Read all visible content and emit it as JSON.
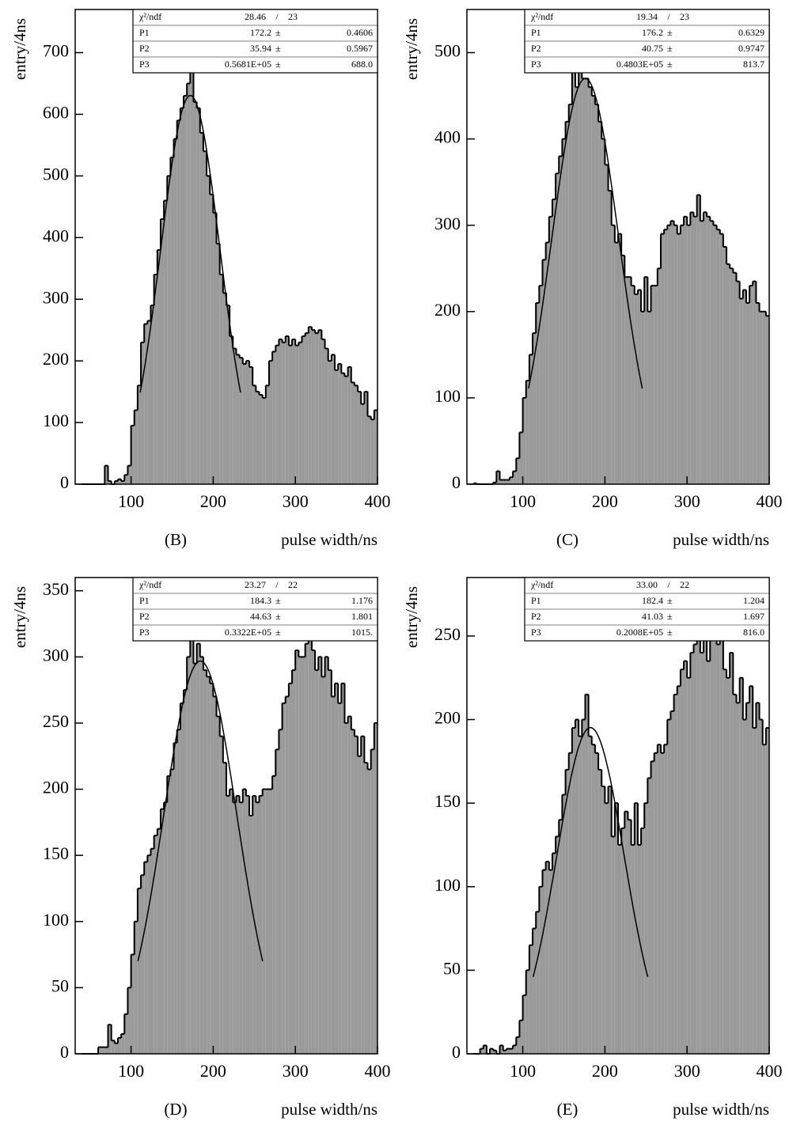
{
  "chart_data": [
    {
      "type": "histogram",
      "panel_label": "(B)",
      "x_label": "pulse width/ns",
      "y_label": "entry/4ns",
      "color": "#9a9a9a",
      "xlim": [
        32,
        400
      ],
      "ylim": [
        0,
        770
      ],
      "xticks": [
        100,
        200,
        300,
        400
      ],
      "yticks": [
        0,
        100,
        200,
        300,
        400,
        500,
        600,
        700
      ],
      "bins": [
        40,
        44,
        48,
        52,
        56,
        60,
        64,
        68,
        72,
        76,
        80,
        84,
        88,
        92,
        96,
        100,
        104,
        108,
        112,
        116,
        120,
        124,
        128,
        132,
        136,
        140,
        144,
        148,
        152,
        156,
        160,
        164,
        168,
        172,
        176,
        180,
        184,
        188,
        192,
        196,
        200,
        204,
        208,
        212,
        216,
        220,
        224,
        228,
        232,
        236,
        240,
        244,
        248,
        252,
        256,
        260,
        264,
        268,
        272,
        276,
        280,
        284,
        288,
        292,
        296,
        300,
        304,
        308,
        312,
        316,
        320,
        324,
        328,
        332,
        336,
        340,
        344,
        348,
        352,
        356,
        360,
        364,
        368,
        372,
        376,
        380,
        384,
        388,
        392,
        396,
        400
      ],
      "counts": [
        0,
        0,
        0,
        0,
        0,
        0,
        0,
        30,
        5,
        0,
        5,
        8,
        5,
        15,
        30,
        95,
        120,
        160,
        230,
        260,
        265,
        290,
        340,
        380,
        430,
        460,
        500,
        530,
        560,
        590,
        610,
        630,
        650,
        690,
        620,
        610,
        570,
        540,
        500,
        470,
        440,
        390,
        340,
        310,
        290,
        240,
        220,
        210,
        205,
        195,
        200,
        190,
        160,
        150,
        145,
        140,
        160,
        200,
        215,
        225,
        235,
        230,
        240,
        225,
        235,
        225,
        230,
        240,
        245,
        255,
        250,
        245,
        250,
        235,
        220,
        200,
        210,
        185,
        195,
        180,
        175,
        190,
        165,
        160,
        150,
        130,
        150,
        110,
        105,
        120
      ],
      "fit": {
        "chi2_label": "χ²/ndf",
        "chi2": 28.46,
        "sep": "/",
        "ndf": 23,
        "params": [
          {
            "name": "P1",
            "value": 172.2,
            "pm": "±",
            "error": 0.4606
          },
          {
            "name": "P2",
            "value": 35.94,
            "pm": "±",
            "error": 0.5967
          },
          {
            "name": "P3",
            "value": {
              "value": 56810,
              "label": "0.5681E+05"
            },
            "pm": "±",
            "error": {
              "value": 688,
              "label": "688.0"
            }
          }
        ]
      }
    },
    {
      "type": "histogram",
      "panel_label": "(C)",
      "x_label": "pulse width/ns",
      "y_label": "entry/4ns",
      "color": "#9a9a9a",
      "xlim": [
        32,
        400
      ],
      "ylim": [
        0,
        550
      ],
      "xticks": [
        100,
        200,
        300,
        400
      ],
      "yticks": [
        0,
        100,
        200,
        300,
        400,
        500
      ],
      "bins": [
        40,
        44,
        48,
        52,
        56,
        60,
        64,
        68,
        72,
        76,
        80,
        84,
        88,
        92,
        96,
        100,
        104,
        108,
        112,
        116,
        120,
        124,
        128,
        132,
        136,
        140,
        144,
        148,
        152,
        156,
        160,
        164,
        168,
        172,
        176,
        180,
        184,
        188,
        192,
        196,
        200,
        204,
        208,
        212,
        216,
        220,
        224,
        228,
        232,
        236,
        240,
        244,
        248,
        252,
        256,
        260,
        264,
        268,
        272,
        276,
        280,
        284,
        288,
        292,
        296,
        300,
        304,
        308,
        312,
        316,
        320,
        324,
        328,
        332,
        336,
        340,
        344,
        348,
        352,
        356,
        360,
        364,
        368,
        372,
        376,
        380,
        384,
        388,
        392,
        396,
        400
      ],
      "counts": [
        1,
        0,
        0,
        0,
        0,
        0,
        2,
        15,
        5,
        5,
        5,
        8,
        15,
        30,
        60,
        100,
        120,
        150,
        175,
        210,
        230,
        260,
        280,
        310,
        330,
        360,
        380,
        400,
        420,
        440,
        490,
        460,
        490,
        470,
        470,
        460,
        450,
        440,
        420,
        400,
        370,
        340,
        300,
        280,
        290,
        265,
        240,
        240,
        230,
        220,
        225,
        200,
        240,
        200,
        230,
        230,
        250,
        290,
        295,
        300,
        305,
        300,
        290,
        300,
        310,
        300,
        315,
        310,
        335,
        305,
        315,
        310,
        305,
        300,
        295,
        290,
        275,
        255,
        250,
        245,
        235,
        215,
        225,
        210,
        230,
        235,
        210,
        200,
        200,
        195
      ],
      "fit": {
        "chi2_label": "χ²/ndf",
        "chi2": 19.34,
        "sep": "/",
        "ndf": 23,
        "params": [
          {
            "name": "P1",
            "value": 176.2,
            "pm": "±",
            "error": 0.6329
          },
          {
            "name": "P2",
            "value": 40.75,
            "pm": "±",
            "error": 0.9747
          },
          {
            "name": "P3",
            "value": {
              "value": 48030,
              "label": "0.4803E+05"
            },
            "pm": "±",
            "error": 813.7
          }
        ]
      }
    },
    {
      "type": "histogram",
      "panel_label": "(D)",
      "x_label": "pulse width/ns",
      "y_label": "entry/4ns",
      "color": "#9a9a9a",
      "xlim": [
        32,
        400
      ],
      "ylim": [
        0,
        360
      ],
      "xticks": [
        100,
        200,
        300,
        400
      ],
      "yticks": [
        0,
        50,
        100,
        150,
        200,
        250,
        300,
        350
      ],
      "bins": [
        40,
        44,
        48,
        52,
        56,
        60,
        64,
        68,
        72,
        76,
        80,
        84,
        88,
        92,
        96,
        100,
        104,
        108,
        112,
        116,
        120,
        124,
        128,
        132,
        136,
        140,
        144,
        148,
        152,
        156,
        160,
        164,
        168,
        172,
        176,
        180,
        184,
        188,
        192,
        196,
        200,
        204,
        208,
        212,
        216,
        220,
        224,
        228,
        232,
        236,
        240,
        244,
        248,
        252,
        256,
        260,
        264,
        268,
        272,
        276,
        280,
        284,
        288,
        292,
        296,
        300,
        304,
        308,
        312,
        316,
        320,
        324,
        328,
        332,
        336,
        340,
        344,
        348,
        352,
        356,
        360,
        364,
        368,
        372,
        376,
        380,
        384,
        388,
        392,
        396,
        400
      ],
      "counts": [
        0,
        0,
        0,
        0,
        0,
        5,
        5,
        5,
        22,
        10,
        8,
        12,
        15,
        30,
        50,
        75,
        100,
        125,
        135,
        145,
        150,
        155,
        165,
        170,
        185,
        190,
        210,
        215,
        235,
        245,
        265,
        275,
        300,
        315,
        295,
        310,
        300,
        290,
        285,
        280,
        270,
        255,
        240,
        220,
        195,
        200,
        190,
        195,
        190,
        200,
        195,
        180,
        195,
        190,
        195,
        200,
        200,
        200,
        210,
        230,
        245,
        265,
        270,
        280,
        290,
        305,
        300,
        300,
        310,
        320,
        305,
        290,
        300,
        285,
        300,
        290,
        270,
        280,
        265,
        280,
        250,
        255,
        245,
        240,
        225,
        240,
        220,
        215,
        230,
        250
      ],
      "fit": {
        "chi2_label": "χ²/ndf",
        "chi2": 23.27,
        "sep": "/",
        "ndf": 22,
        "params": [
          {
            "name": "P1",
            "value": 184.3,
            "pm": "±",
            "error": 1.176
          },
          {
            "name": "P2",
            "value": 44.63,
            "pm": "±",
            "error": 1.801
          },
          {
            "name": "P3",
            "value": {
              "value": 33220,
              "label": "0.3322E+05"
            },
            "pm": "±",
            "error": {
              "value": 1015,
              "label": "1015."
            }
          }
        ]
      }
    },
    {
      "type": "histogram",
      "panel_label": "(E)",
      "x_label": "pulse width/ns",
      "y_label": "entry/4ns",
      "color": "#9a9a9a",
      "xlim": [
        32,
        400
      ],
      "ylim": [
        0,
        285
      ],
      "xticks": [
        100,
        200,
        300,
        400
      ],
      "yticks": [
        0,
        50,
        100,
        150,
        200,
        250
      ],
      "bins": [
        40,
        44,
        48,
        52,
        56,
        60,
        64,
        68,
        72,
        76,
        80,
        84,
        88,
        92,
        96,
        100,
        104,
        108,
        112,
        116,
        120,
        124,
        128,
        132,
        136,
        140,
        144,
        148,
        152,
        156,
        160,
        164,
        168,
        172,
        176,
        180,
        184,
        188,
        192,
        196,
        200,
        204,
        208,
        212,
        216,
        220,
        224,
        228,
        232,
        236,
        240,
        244,
        248,
        252,
        256,
        260,
        264,
        268,
        272,
        276,
        280,
        284,
        288,
        292,
        296,
        300,
        304,
        308,
        312,
        316,
        320,
        324,
        328,
        332,
        336,
        340,
        344,
        348,
        352,
        356,
        360,
        364,
        368,
        372,
        376,
        380,
        384,
        388,
        392,
        396,
        400
      ],
      "counts": [
        0,
        0,
        3,
        5,
        0,
        3,
        2,
        0,
        5,
        2,
        3,
        3,
        5,
        10,
        20,
        35,
        50,
        65,
        75,
        85,
        100,
        110,
        115,
        110,
        120,
        130,
        140,
        155,
        170,
        180,
        195,
        200,
        190,
        200,
        215,
        190,
        185,
        180,
        170,
        160,
        150,
        160,
        130,
        150,
        125,
        135,
        145,
        140,
        125,
        150,
        125,
        135,
        150,
        165,
        175,
        180,
        185,
        180,
        185,
        200,
        205,
        215,
        220,
        230,
        235,
        225,
        240,
        245,
        255,
        240,
        250,
        235,
        255,
        260,
        245,
        250,
        230,
        225,
        240,
        215,
        210,
        225,
        200,
        210,
        220,
        195,
        210,
        200,
        185,
        195
      ],
      "fit": {
        "chi2_label": "χ²/ndf",
        "chi2": {
          "value": 33,
          "label": "33.00"
        },
        "sep": "/",
        "ndf": 22,
        "params": [
          {
            "name": "P1",
            "value": 182.4,
            "pm": "±",
            "error": 1.204
          },
          {
            "name": "P2",
            "value": 41.03,
            "pm": "±",
            "error": 1.697
          },
          {
            "name": "P3",
            "value": {
              "value": 20080,
              "label": "0.2008E+05"
            },
            "pm": "±",
            "error": {
              "value": 816,
              "label": "816.0"
            }
          }
        ]
      }
    }
  ]
}
